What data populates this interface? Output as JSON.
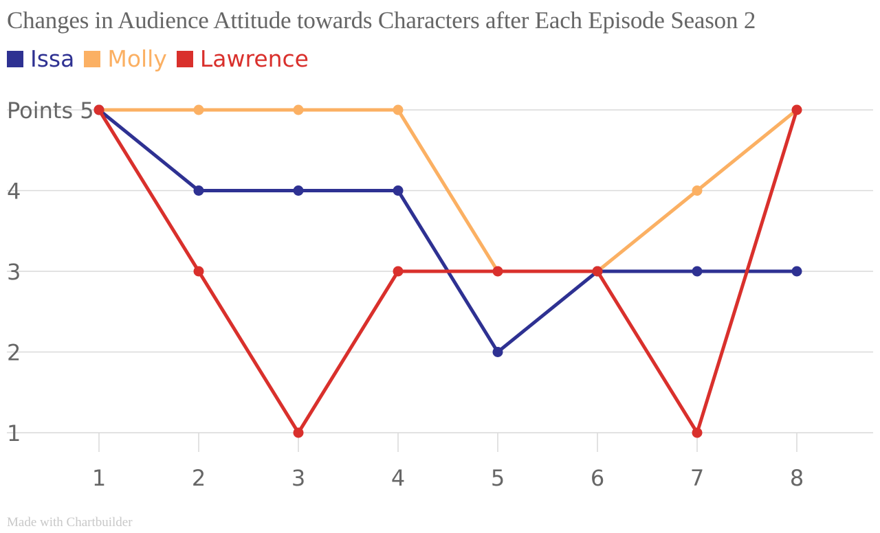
{
  "chart_data": {
    "type": "line",
    "title": "Changes in Audience Attitude towards Characters after Each Episode Season 2",
    "ylabel": "Points",
    "xlabel": "",
    "x": [
      1,
      2,
      3,
      4,
      5,
      6,
      7,
      8
    ],
    "ylim": [
      1,
      5
    ],
    "yticks": [
      1,
      2,
      3,
      4,
      5
    ],
    "grid": true,
    "legend_position": "top-left",
    "series": [
      {
        "name": "Issa",
        "color": "#2e3192",
        "values": [
          5,
          4,
          4,
          4,
          2,
          3,
          3,
          3
        ]
      },
      {
        "name": "Molly",
        "color": "#fbb063",
        "values": [
          5,
          5,
          5,
          5,
          3,
          3,
          4,
          5
        ]
      },
      {
        "name": "Lawrence",
        "color": "#d9302c",
        "values": [
          5,
          3,
          1,
          3,
          3,
          3,
          1,
          5
        ]
      }
    ]
  },
  "footer": "Made with Chartbuilder"
}
